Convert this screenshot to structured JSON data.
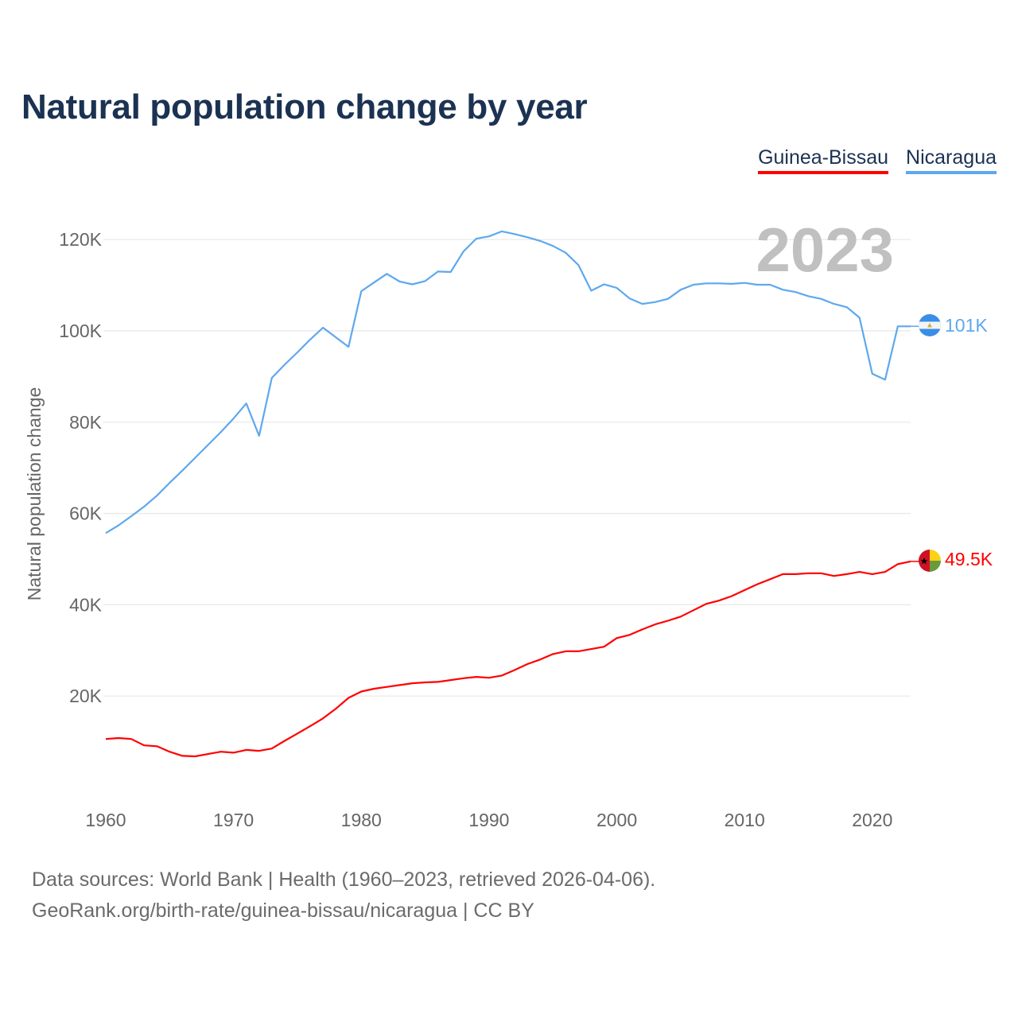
{
  "title": "Natural population change by year",
  "legend": [
    {
      "label": "Guinea-Bissau",
      "color": "#ff0000"
    },
    {
      "label": "Nicaragua",
      "color": "#5ea8ee"
    }
  ],
  "footer": {
    "line1": "Data sources: World Bank | Health (1960–2023, retrieved 2026-04-06).",
    "line2": "GeoRank.org/birth-rate/guinea-bissau/nicaragua | CC BY"
  },
  "chart_data": {
    "type": "line",
    "title": "Natural population change by year",
    "xlabel": "",
    "ylabel": "Natural population change",
    "year_watermark": "2023",
    "xlim": [
      1960,
      2023
    ],
    "ylim": [
      0,
      125000
    ],
    "x_ticks": [
      1960,
      1970,
      1980,
      1990,
      2000,
      2010,
      2020
    ],
    "y_ticks": [
      {
        "v": 20000,
        "label": "20K"
      },
      {
        "v": 40000,
        "label": "40K"
      },
      {
        "v": 60000,
        "label": "60K"
      },
      {
        "v": 80000,
        "label": "80K"
      },
      {
        "v": 100000,
        "label": "100K"
      },
      {
        "v": 120000,
        "label": "120K"
      }
    ],
    "grid": true,
    "legend_position": "top-right",
    "x": [
      1960,
      1961,
      1962,
      1963,
      1964,
      1965,
      1966,
      1967,
      1968,
      1969,
      1970,
      1971,
      1972,
      1973,
      1974,
      1975,
      1976,
      1977,
      1978,
      1979,
      1980,
      1981,
      1982,
      1983,
      1984,
      1985,
      1986,
      1987,
      1988,
      1989,
      1990,
      1991,
      1992,
      1993,
      1994,
      1995,
      1996,
      1997,
      1998,
      1999,
      2000,
      2001,
      2002,
      2003,
      2004,
      2005,
      2006,
      2007,
      2008,
      2009,
      2010,
      2011,
      2012,
      2013,
      2014,
      2015,
      2016,
      2017,
      2018,
      2019,
      2020,
      2021,
      2022,
      2023
    ],
    "series": [
      {
        "name": "Nicaragua",
        "color": "#5ea8ee",
        "end_label": "101K",
        "values": [
          55700,
          57400,
          59400,
          61500,
          63900,
          66700,
          69400,
          72200,
          75000,
          77800,
          80800,
          84100,
          77000,
          89700,
          92600,
          95300,
          98100,
          100700,
          98600,
          96500,
          108700,
          110600,
          112500,
          110800,
          110200,
          110900,
          113000,
          112900,
          117400,
          120200,
          120700,
          121800,
          121200,
          120500,
          119700,
          118600,
          117100,
          114400,
          108800,
          110200,
          109400,
          107100,
          105900,
          106300,
          107000,
          109000,
          110100,
          110400,
          110400,
          110300,
          110500,
          110100,
          110100,
          109000,
          108500,
          107600,
          107000,
          105900,
          105200,
          102900,
          90600,
          89300,
          101000,
          101000
        ]
      },
      {
        "name": "Guinea-Bissau",
        "color": "#ff0000",
        "end_label": "49.5K",
        "values": [
          10600,
          10800,
          10600,
          9200,
          9000,
          7800,
          6900,
          6800,
          7300,
          7800,
          7600,
          8200,
          8000,
          8500,
          10200,
          11800,
          13400,
          15100,
          17200,
          19600,
          21000,
          21600,
          22000,
          22400,
          22800,
          23000,
          23100,
          23500,
          23900,
          24200,
          24000,
          24500,
          25700,
          27000,
          28000,
          29200,
          29800,
          29800,
          30300,
          30800,
          32700,
          33400,
          34600,
          35700,
          36500,
          37400,
          38800,
          40200,
          40900,
          41900,
          43200,
          44500,
          45600,
          46700,
          46700,
          46900,
          46900,
          46300,
          46700,
          47200,
          46700,
          47200,
          48900,
          49500
        ]
      }
    ]
  }
}
